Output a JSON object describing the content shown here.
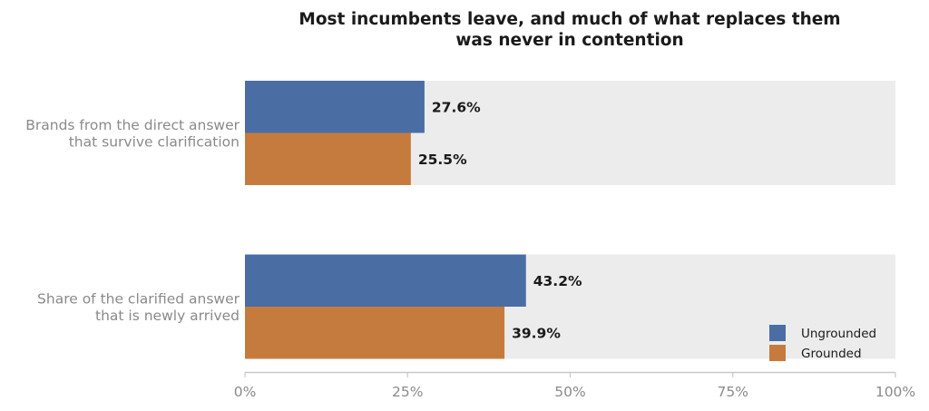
{
  "chart_data": {
    "type": "bar",
    "orientation": "horizontal",
    "title_lines": [
      "Most incumbents leave, and much of what replaces them",
      "was never in contention"
    ],
    "categories": [
      {
        "lines": [
          "Brands from the direct answer",
          "that survive clarification"
        ]
      },
      {
        "lines": [
          "Share of the clarified answer",
          "that is newly arrived"
        ]
      }
    ],
    "series": [
      {
        "name": "Ungrounded",
        "color": "#4a6da4",
        "values": [
          27.6,
          43.2
        ],
        "labels": [
          "27.6%",
          "43.2%"
        ]
      },
      {
        "name": "Grounded",
        "color": "#c67b3e",
        "values": [
          25.5,
          39.9
        ],
        "labels": [
          "25.5%",
          "39.9%"
        ]
      }
    ],
    "background_bar_color": "#ececec",
    "xlim": [
      0,
      100
    ],
    "xticks": [
      0,
      25,
      50,
      75,
      100
    ],
    "xtick_labels": [
      "0%",
      "25%",
      "50%",
      "75%",
      "100%"
    ],
    "xlabel": "",
    "ylabel": "",
    "grid": false,
    "legend_position": "bottom-right"
  }
}
